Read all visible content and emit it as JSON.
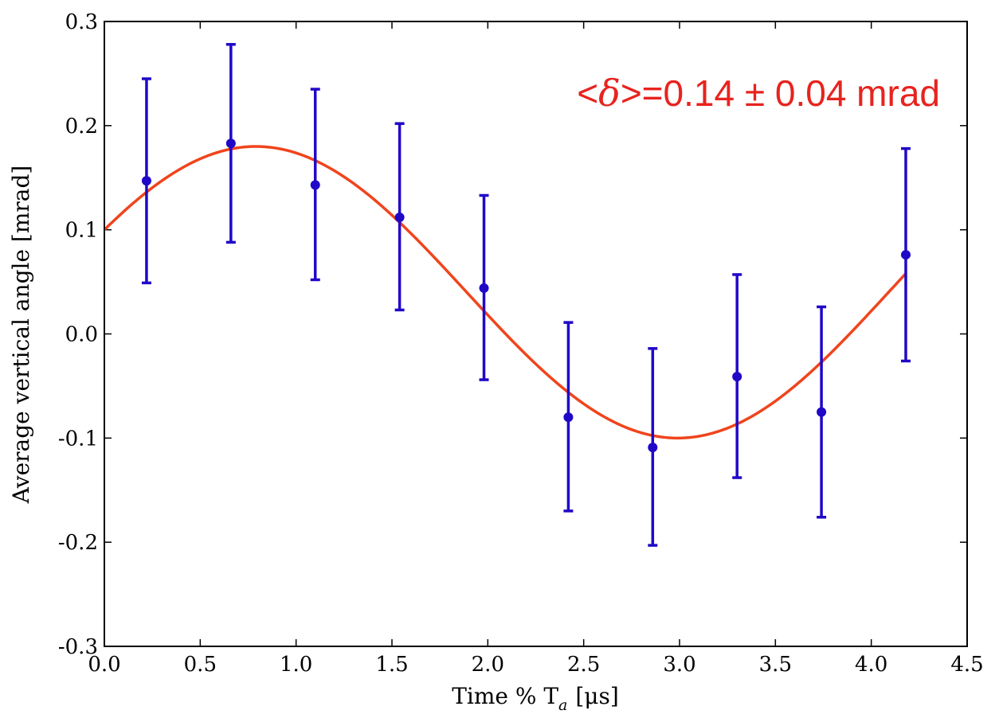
{
  "colors": {
    "points": "#2008c8",
    "fit": "#f0441c",
    "annotation": "#e8231e",
    "axis": "#000000"
  },
  "chart_data": {
    "type": "scatter",
    "title": "",
    "xlabel": "Time % T",
    "xlabel_subscript": "a",
    "xlabel_units": "[μs]",
    "ylabel": "Average vertical angle [mrad]",
    "xlim": [
      0.0,
      4.5
    ],
    "ylim": [
      -0.3,
      0.3
    ],
    "x_ticks": [
      "0.0",
      "0.5",
      "1.0",
      "1.5",
      "2.0",
      "2.5",
      "3.0",
      "3.5",
      "4.0",
      "4.5"
    ],
    "y_ticks": [
      "0.3",
      "0.2",
      "0.1",
      "0.0",
      "-0.1",
      "-0.2",
      "-0.3"
    ],
    "grid": false,
    "annotation": {
      "prefix": "<",
      "symbol": "δ",
      "suffix": ">=0.14 ± 0.04 mrad"
    },
    "series": [
      {
        "type": "errorbar",
        "x": [
          0.22,
          0.66,
          1.1,
          1.54,
          1.98,
          2.42,
          2.86,
          3.3,
          3.74,
          4.18
        ],
        "y": [
          0.147,
          0.183,
          0.143,
          0.112,
          0.044,
          -0.08,
          -0.109,
          -0.041,
          -0.075,
          0.076
        ],
        "yerr_low": [
          0.049,
          0.088,
          0.052,
          0.023,
          -0.044,
          -0.17,
          -0.203,
          -0.138,
          -0.176,
          -0.026
        ],
        "yerr_high": [
          0.245,
          0.278,
          0.235,
          0.202,
          0.133,
          0.011,
          -0.014,
          0.057,
          0.026,
          0.178
        ]
      },
      {
        "type": "line",
        "fit": {
          "offset": 0.04,
          "amplitude": 0.14,
          "period": 4.4,
          "phase_center": 0.79,
          "x_range": [
            0.0,
            4.18
          ]
        }
      }
    ]
  }
}
